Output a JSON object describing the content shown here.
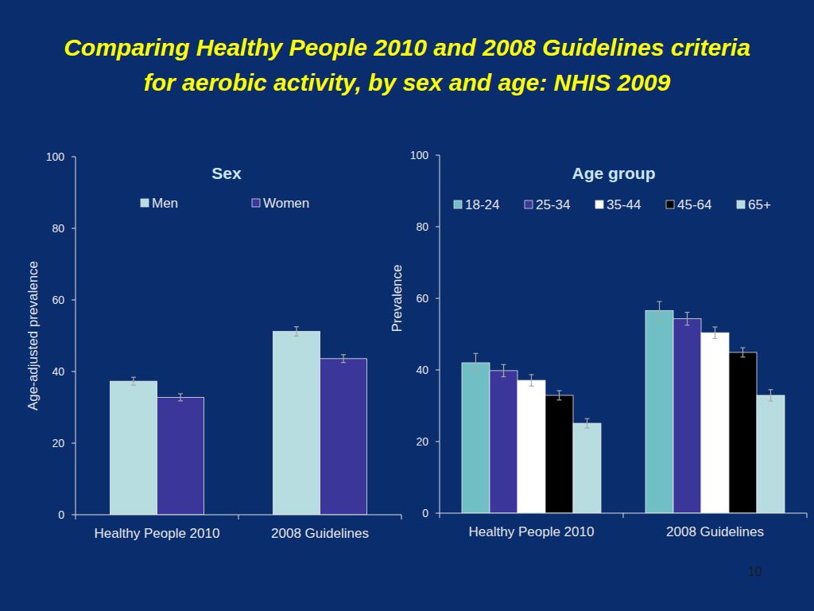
{
  "title": "Comparing Healthy People 2010 and 2008 Guidelines criteria for aerobic activity, by sex and age: NHIS 2009",
  "page_number": "10",
  "chart_data": [
    {
      "type": "bar",
      "title": "Sex",
      "categories": [
        "Healthy People 2010",
        "2008 Guidelines"
      ],
      "y_label": "Age-adjusted prevalence",
      "series": [
        {
          "name": "Men",
          "color": "#b7dde0",
          "values": [
            37.3,
            51.2
          ],
          "errors": [
            1.1,
            1.3
          ]
        },
        {
          "name": "Women",
          "color": "#3b3699",
          "values": [
            32.8,
            43.6
          ],
          "errors": [
            1.0,
            1.1
          ]
        }
      ],
      "ylim": [
        0,
        100
      ],
      "yticks": [
        0,
        20,
        40,
        60,
        80,
        100
      ],
      "grid": false,
      "legend": "top"
    },
    {
      "type": "bar",
      "title": "Age group",
      "categories": [
        "Healthy People 2010",
        "2008 Guidelines"
      ],
      "y_label": "Prevalence",
      "series": [
        {
          "name": "18-24",
          "color": "#70bfc5",
          "values": [
            42.0,
            56.6
          ],
          "errors": [
            2.6,
            2.5
          ]
        },
        {
          "name": "25-34",
          "color": "#3b3699",
          "values": [
            39.8,
            54.3
          ],
          "errors": [
            1.7,
            1.8
          ]
        },
        {
          "name": "35-44",
          "color": "#ffffff",
          "values": [
            37.1,
            50.4
          ],
          "errors": [
            1.6,
            1.6
          ]
        },
        {
          "name": "45-64",
          "color": "#000000",
          "values": [
            32.9,
            44.9
          ],
          "errors": [
            1.3,
            1.3
          ]
        },
        {
          "name": "65+",
          "color": "#b7dde0",
          "values": [
            25.1,
            32.9
          ],
          "errors": [
            1.3,
            1.6
          ]
        }
      ],
      "ylim": [
        0,
        100
      ],
      "yticks": [
        0,
        20,
        40,
        60,
        80,
        100
      ],
      "grid": false,
      "legend": "top"
    }
  ]
}
